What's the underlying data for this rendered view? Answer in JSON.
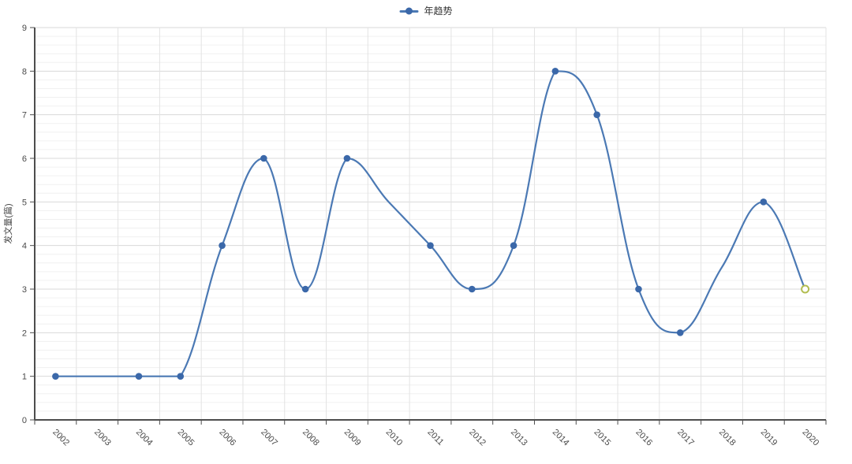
{
  "legend": {
    "label": "年趋势"
  },
  "chart_data": {
    "type": "line",
    "smooth": true,
    "title": "",
    "xlabel": "",
    "ylabel": "发文量(篇)",
    "categories": [
      "2002",
      "2003",
      "2004",
      "2005",
      "2006",
      "2007",
      "2008",
      "2009",
      "2010",
      "2011",
      "2012",
      "2013",
      "2014",
      "2015",
      "2016",
      "2017",
      "2018",
      "2019",
      "2020"
    ],
    "series": [
      {
        "name": "年趋势",
        "values": [
          1,
          1,
          1,
          1,
          4,
          6,
          3,
          6,
          null,
          4,
          3,
          4,
          8,
          7,
          3,
          2,
          null,
          5,
          3
        ]
      }
    ],
    "ylim": [
      0,
      9
    ],
    "y_ticks": [
      0,
      1,
      2,
      3,
      4,
      5,
      6,
      7,
      8,
      9
    ],
    "grid": true,
    "legend_position": "top-center",
    "no_marker_years": [
      "2003",
      "2010",
      "2018"
    ],
    "last_point": {
      "style": "hollow-circle",
      "value": 3,
      "year": "2020"
    },
    "colors": {
      "line": "#4b79b4",
      "marker": "#3b68a9",
      "last_marker_stroke": "#b2bd50",
      "last_marker_fill": "#ffffff",
      "axis": "#4d4d4d",
      "grid_major": "#d9d9d9",
      "grid_minor": "#f0f0f0",
      "grid_vertical": "#e3e3e3",
      "label": "#4a4a4a"
    }
  }
}
